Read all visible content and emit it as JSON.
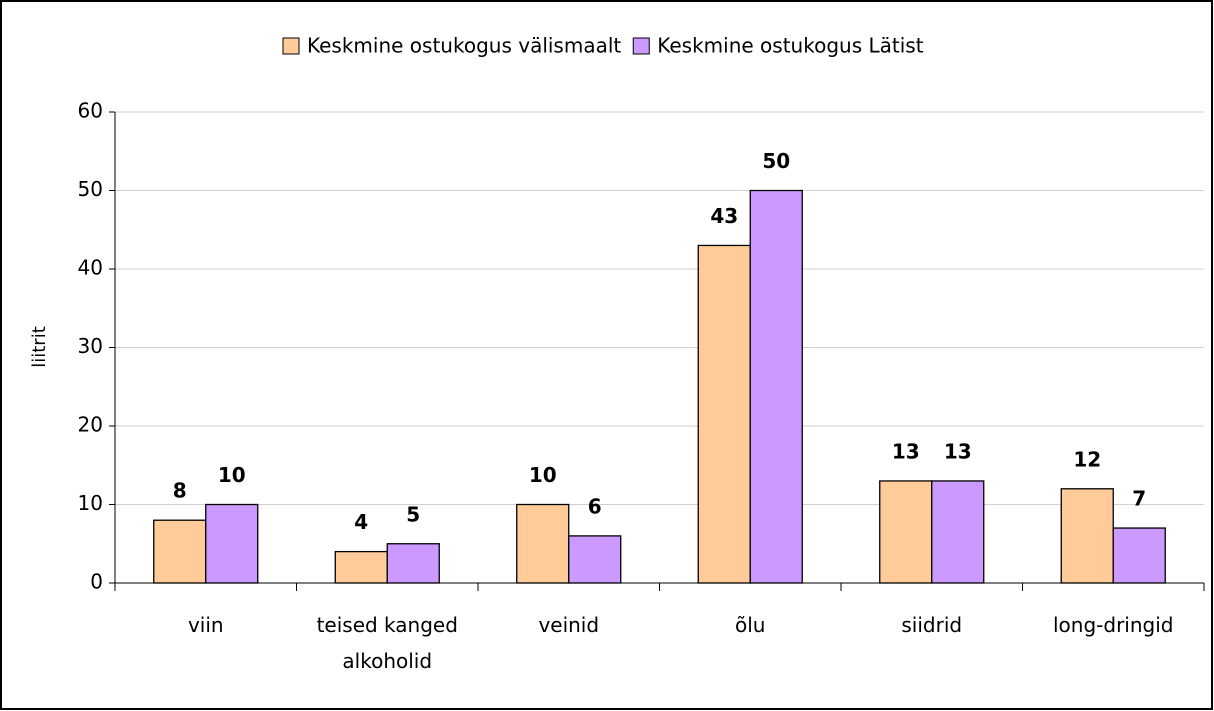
{
  "chart_data": {
    "type": "bar",
    "categories": [
      "viin",
      "teised kanged alkoholid",
      "veinid",
      "õlu",
      "siidrid",
      "long-dringid"
    ],
    "series": [
      {
        "name": "Keskmine ostukogus välismaalt",
        "color": "#ffcc99",
        "values": [
          8,
          4,
          10,
          43,
          13,
          12
        ]
      },
      {
        "name": "Keskmine ostukogus Lätist",
        "color": "#cc99ff",
        "values": [
          10,
          5,
          6,
          50,
          13,
          7
        ]
      }
    ],
    "y_label": "liitrit",
    "ylim": [
      0,
      60
    ],
    "yticks": [
      0,
      10,
      20,
      30,
      40,
      50,
      60
    ],
    "grid": true,
    "legend": "top"
  }
}
